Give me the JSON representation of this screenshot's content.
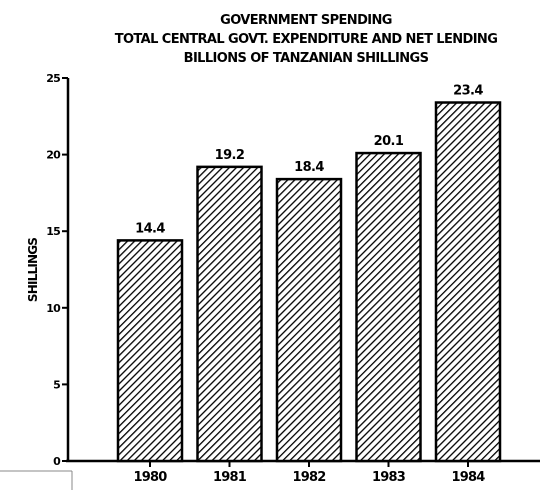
{
  "chart_data": {
    "type": "bar",
    "title_lines": [
      "GOVERNMENT SPENDING",
      "TOTAL CENTRAL GOVT. EXPENDITURE AND NET LENDING",
      "BILLIONS OF TANZANIAN SHILLINGS"
    ],
    "ylabel": "SHILLINGS",
    "xlabel": "",
    "categories": [
      "1980",
      "1981",
      "1982",
      "1983",
      "1984"
    ],
    "values": [
      14.4,
      19.2,
      18.4,
      20.1,
      23.4
    ],
    "value_labels": [
      "14.4",
      "19.2",
      "18.4",
      "20.1",
      "23.4"
    ],
    "ylim": [
      0,
      25
    ],
    "yticks": [
      0,
      5,
      10,
      15,
      20,
      25
    ],
    "ytick_labels": [
      "0",
      "5",
      "10",
      "15",
      "20",
      "25"
    ],
    "grid": false,
    "bar_fill": "hatched",
    "colors": {
      "bar_stroke": "#000000",
      "hatch": "#000000",
      "background": "#ffffff"
    }
  }
}
